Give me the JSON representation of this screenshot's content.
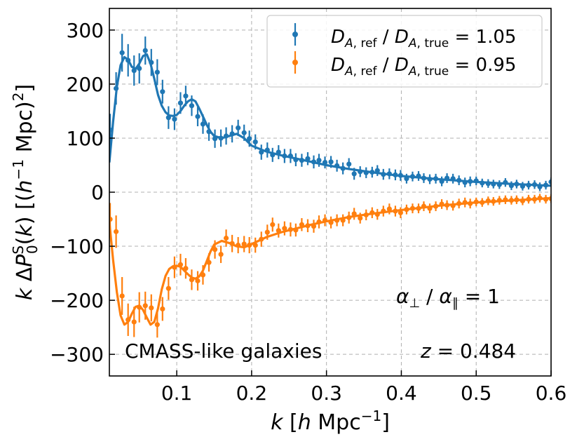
{
  "chart_data": {
    "type": "line",
    "xlabel": "k [h Mpc^-1]",
    "ylabel": "k ΔP0^S(k) [(h^-1 Mpc)^2]",
    "xlim": [
      0.01,
      0.6
    ],
    "ylim": [
      -340,
      340
    ],
    "xticks": [
      0.1,
      0.2,
      0.3,
      0.4,
      0.5,
      0.6
    ],
    "xtick_labels": [
      "0.1",
      "0.2",
      "0.3",
      "0.4",
      "0.5",
      "0.6"
    ],
    "yticks": [
      -300,
      -200,
      -100,
      0,
      100,
      200,
      300
    ],
    "ytick_labels": [
      "−300",
      "−200",
      "−100",
      "0",
      "100",
      "200",
      "300"
    ],
    "grid": true,
    "legend_position": "top-right",
    "annotations": [
      "α⊥ / α∥ = 1",
      "CMASS-like galaxies",
      "z = 0.484"
    ],
    "series": [
      {
        "name": "D_A,ref / D_A,true = 1.05",
        "color": "#1f77b4",
        "model_x": [
          0.01,
          0.015,
          0.02,
          0.025,
          0.03,
          0.035,
          0.04,
          0.045,
          0.05,
          0.055,
          0.06,
          0.065,
          0.07,
          0.075,
          0.08,
          0.085,
          0.09,
          0.095,
          0.1,
          0.105,
          0.11,
          0.115,
          0.12,
          0.125,
          0.13,
          0.135,
          0.14,
          0.145,
          0.15,
          0.16,
          0.17,
          0.18,
          0.19,
          0.2,
          0.22,
          0.24,
          0.26,
          0.28,
          0.3,
          0.33,
          0.36,
          0.4,
          0.45,
          0.5,
          0.55,
          0.6
        ],
        "model_y": [
          55,
          130,
          195,
          235,
          250,
          245,
          232,
          228,
          238,
          252,
          255,
          238,
          210,
          180,
          160,
          148,
          142,
          141,
          143,
          150,
          160,
          168,
          172,
          168,
          155,
          140,
          125,
          112,
          104,
          100,
          104,
          108,
          100,
          86,
          75,
          68,
          62,
          56,
          50,
          43,
          37,
          30,
          24,
          19,
          15,
          12
        ],
        "points_x": [
          0.011,
          0.019,
          0.027,
          0.035,
          0.043,
          0.05,
          0.058,
          0.066,
          0.074,
          0.081,
          0.089,
          0.097,
          0.105,
          0.112,
          0.12,
          0.128,
          0.135,
          0.143,
          0.151,
          0.159,
          0.166,
          0.174,
          0.182,
          0.19,
          0.197,
          0.205,
          0.213,
          0.221,
          0.228,
          0.236,
          0.244,
          0.252,
          0.259,
          0.267,
          0.275,
          0.283,
          0.29,
          0.298,
          0.306,
          0.314,
          0.322,
          0.33,
          0.337,
          0.345,
          0.353,
          0.361,
          0.368,
          0.376,
          0.384,
          0.392,
          0.399,
          0.407,
          0.415,
          0.423,
          0.43,
          0.438,
          0.446,
          0.454,
          0.461,
          0.469,
          0.477,
          0.485,
          0.492,
          0.5,
          0.508,
          0.516,
          0.523,
          0.531,
          0.539,
          0.547,
          0.554,
          0.562,
          0.57,
          0.578,
          0.585,
          0.593,
          0.6
        ],
        "points_y": [
          115,
          192,
          258,
          244,
          225,
          229,
          262,
          240,
          222,
          186,
          138,
          135,
          165,
          178,
          160,
          140,
          126,
          112,
          99,
          100,
          104,
          108,
          119,
          110,
          99,
          93,
          74,
          78,
          69,
          74,
          67,
          67,
          60,
          59,
          62,
          56,
          59,
          55,
          56,
          49,
          44,
          52,
          34,
          38,
          36,
          37,
          40,
          33,
          34,
          32,
          31,
          25,
          29,
          30,
          26,
          24,
          25,
          20,
          26,
          25,
          22,
          18,
          20,
          21,
          17,
          16,
          15,
          14,
          18,
          12,
          15,
          11,
          13,
          14,
          10,
          13,
          19
        ],
        "errors": [
          30,
          30,
          35,
          30,
          28,
          28,
          26,
          25,
          24,
          22,
          21,
          20,
          20,
          19,
          19,
          18,
          18,
          17,
          17,
          16,
          16,
          16,
          15,
          15,
          15,
          14,
          14,
          14,
          13,
          13,
          13,
          13,
          12,
          12,
          12,
          12,
          12,
          11,
          11,
          11,
          11,
          11,
          11,
          10,
          10,
          10,
          10,
          10,
          10,
          10,
          10,
          9,
          9,
          9,
          9,
          9,
          9,
          9,
          9,
          9,
          9,
          9,
          9,
          8,
          8,
          8,
          8,
          8,
          8,
          8,
          8,
          8,
          8,
          8,
          8,
          8,
          8
        ]
      },
      {
        "name": "D_A,ref / D_A,true = 0.95",
        "color": "#ff7f0e",
        "model_x": [
          0.01,
          0.015,
          0.02,
          0.025,
          0.03,
          0.035,
          0.04,
          0.045,
          0.05,
          0.055,
          0.06,
          0.065,
          0.07,
          0.075,
          0.08,
          0.085,
          0.09,
          0.095,
          0.1,
          0.105,
          0.11,
          0.115,
          0.12,
          0.125,
          0.13,
          0.135,
          0.14,
          0.145,
          0.15,
          0.16,
          0.17,
          0.18,
          0.19,
          0.2,
          0.22,
          0.24,
          0.26,
          0.28,
          0.3,
          0.33,
          0.36,
          0.4,
          0.45,
          0.5,
          0.55,
          0.6
        ],
        "model_y": [
          -55,
          -125,
          -185,
          -228,
          -245,
          -240,
          -225,
          -212,
          -210,
          -218,
          -232,
          -245,
          -240,
          -215,
          -180,
          -155,
          -142,
          -137,
          -136,
          -138,
          -145,
          -152,
          -158,
          -160,
          -156,
          -145,
          -128,
          -110,
          -97,
          -90,
          -94,
          -100,
          -102,
          -96,
          -83,
          -74,
          -67,
          -60,
          -54,
          -46,
          -40,
          -33,
          -25,
          -19,
          -15,
          -11
        ],
        "points_x": [
          0.011,
          0.019,
          0.027,
          0.035,
          0.043,
          0.05,
          0.058,
          0.066,
          0.074,
          0.081,
          0.089,
          0.097,
          0.105,
          0.112,
          0.12,
          0.128,
          0.135,
          0.143,
          0.151,
          0.159,
          0.166,
          0.174,
          0.182,
          0.19,
          0.197,
          0.205,
          0.213,
          0.221,
          0.228,
          0.236,
          0.244,
          0.252,
          0.259,
          0.267,
          0.275,
          0.283,
          0.29,
          0.298,
          0.306,
          0.314,
          0.322,
          0.33,
          0.337,
          0.345,
          0.353,
          0.361,
          0.368,
          0.376,
          0.384,
          0.392,
          0.399,
          0.407,
          0.415,
          0.423,
          0.43,
          0.438,
          0.446,
          0.454,
          0.461,
          0.469,
          0.477,
          0.485,
          0.492,
          0.5,
          0.508,
          0.516,
          0.523,
          0.531,
          0.539,
          0.547,
          0.554,
          0.562,
          0.57,
          0.578,
          0.585,
          0.593,
          0.6
        ],
        "points_y": [
          -50,
          -73,
          -192,
          -236,
          -240,
          -213,
          -210,
          -214,
          -245,
          -216,
          -178,
          -139,
          -134,
          -141,
          -162,
          -164,
          -153,
          -130,
          -106,
          -115,
          -85,
          -95,
          -98,
          -96,
          -98,
          -98,
          -87,
          -74,
          -60,
          -71,
          -67,
          -69,
          -70,
          -60,
          -62,
          -63,
          -55,
          -52,
          -56,
          -52,
          -52,
          -47,
          -40,
          -48,
          -42,
          -38,
          -41,
          -35,
          -31,
          -35,
          -38,
          -32,
          -30,
          -30,
          -26,
          -30,
          -26,
          -22,
          -24,
          -25,
          -21,
          -19,
          -21,
          -18,
          -19,
          -16,
          -17,
          -15,
          -14,
          -15,
          -14,
          -16,
          -13,
          -13,
          -11,
          -13,
          -12
        ],
        "errors": [
          30,
          30,
          35,
          30,
          28,
          28,
          26,
          25,
          24,
          22,
          21,
          20,
          20,
          19,
          19,
          18,
          18,
          17,
          17,
          16,
          16,
          16,
          15,
          15,
          15,
          14,
          14,
          14,
          13,
          13,
          13,
          13,
          12,
          12,
          12,
          12,
          12,
          11,
          11,
          11,
          11,
          11,
          11,
          10,
          10,
          10,
          10,
          10,
          10,
          10,
          10,
          9,
          9,
          9,
          9,
          9,
          9,
          9,
          9,
          9,
          9,
          9,
          9,
          8,
          8,
          8,
          8,
          8,
          8,
          8,
          8,
          8,
          8,
          8,
          8,
          8,
          8
        ]
      }
    ]
  }
}
